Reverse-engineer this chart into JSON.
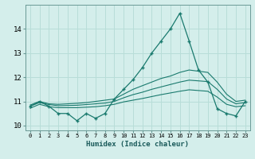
{
  "title": "",
  "xlabel": "Humidex (Indice chaleur)",
  "ylabel": "",
  "bg_color": "#d4eeeb",
  "grid_color": "#b8ddd8",
  "line_color": "#1a7a6e",
  "x_values": [
    0,
    1,
    2,
    3,
    4,
    5,
    6,
    7,
    8,
    9,
    10,
    11,
    12,
    13,
    14,
    15,
    16,
    17,
    18,
    19,
    20,
    21,
    22,
    23
  ],
  "main_line": [
    10.8,
    11.0,
    10.8,
    10.5,
    10.5,
    10.2,
    10.5,
    10.3,
    10.5,
    11.1,
    11.5,
    11.9,
    12.4,
    13.0,
    13.5,
    14.0,
    14.65,
    13.5,
    12.3,
    11.8,
    10.7,
    10.5,
    10.4,
    11.0
  ],
  "upper_line": [
    10.85,
    11.0,
    10.9,
    10.88,
    10.9,
    10.92,
    10.95,
    11.0,
    11.05,
    11.1,
    11.3,
    11.5,
    11.65,
    11.8,
    11.95,
    12.05,
    12.2,
    12.3,
    12.25,
    12.2,
    11.8,
    11.3,
    11.0,
    11.05
  ],
  "mid_line": [
    10.8,
    10.95,
    10.87,
    10.82,
    10.83,
    10.84,
    10.87,
    10.9,
    10.93,
    11.0,
    11.15,
    11.28,
    11.38,
    11.5,
    11.6,
    11.7,
    11.8,
    11.88,
    11.85,
    11.82,
    11.5,
    11.1,
    10.9,
    10.95
  ],
  "lower_line": [
    10.72,
    10.88,
    10.78,
    10.74,
    10.74,
    10.74,
    10.76,
    10.78,
    10.82,
    10.88,
    10.98,
    11.05,
    11.12,
    11.2,
    11.28,
    11.35,
    11.42,
    11.48,
    11.45,
    11.42,
    11.18,
    10.88,
    10.78,
    10.82
  ],
  "ylim": [
    9.8,
    15.0
  ],
  "xlim": [
    -0.5,
    23.5
  ],
  "yticks": [
    10,
    11,
    12,
    13,
    14
  ],
  "xtick_labels": [
    "0",
    "1",
    "2",
    "3",
    "4",
    "5",
    "6",
    "7",
    "8",
    "9",
    "10",
    "11",
    "12",
    "13",
    "14",
    "15",
    "16",
    "17",
    "18",
    "19",
    "20",
    "21",
    "22",
    "23"
  ]
}
